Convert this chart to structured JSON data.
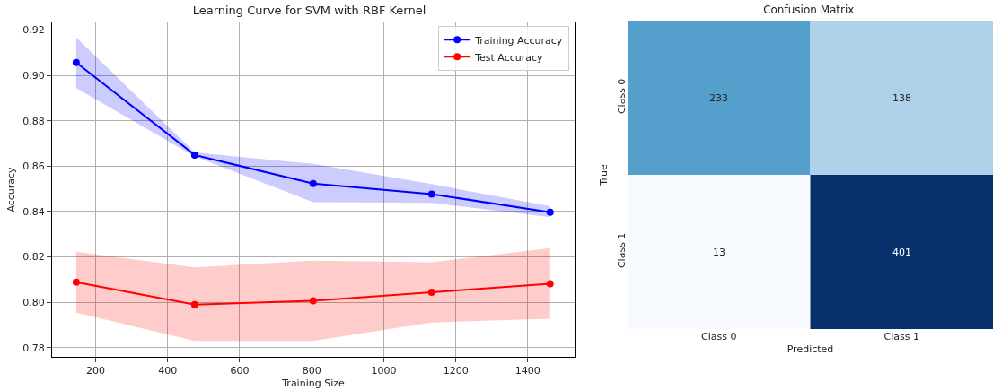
{
  "chart_data": [
    {
      "type": "line",
      "title": "Learning Curve for SVM with RBF Kernel",
      "xlabel": "Training Size",
      "ylabel": "Accuracy",
      "x": [
        146,
        475,
        804,
        1133,
        1462
      ],
      "series": [
        {
          "name": "Training Accuracy",
          "color": "#0000ff",
          "values": [
            0.9056,
            0.8649,
            0.8523,
            0.8477,
            0.8397
          ],
          "lower": [
            0.8944,
            0.8643,
            0.8441,
            0.8438,
            0.8375
          ],
          "upper": [
            0.9167,
            0.866,
            0.861,
            0.8521,
            0.8423
          ]
        },
        {
          "name": "Test Accuracy",
          "color": "#ff0000",
          "values": [
            0.8089,
            0.799,
            0.8007,
            0.8044,
            0.8082
          ],
          "lower": [
            0.7954,
            0.783,
            0.783,
            0.7911,
            0.7928
          ],
          "upper": [
            0.8223,
            0.8154,
            0.8184,
            0.8177,
            0.8239
          ]
        }
      ],
      "xlim": [
        79,
        1530
      ],
      "xticks": [
        200,
        400,
        600,
        800,
        1000,
        1200,
        1400
      ],
      "ylim": [
        0.776,
        0.9233
      ],
      "yticks": [
        0.78,
        {
          "value": 0.8,
          "label": "0.80"
        },
        0.82,
        0.84,
        0.86,
        0.88,
        {
          "value": 0.9,
          "label": "0.90"
        },
        0.92
      ],
      "grid": true,
      "legend": "top right",
      "marker": "circle",
      "line_style": "solid"
    },
    {
      "type": "heatmap",
      "title": "Confusion Matrix",
      "xlabel": "Predicted",
      "ylabel": "True",
      "categories": [
        "Class 0",
        "Class 1"
      ],
      "y_categories": [
        "Class 0",
        "Class 1"
      ],
      "cells": [
        [
          233,
          138
        ],
        [
          13,
          401
        ]
      ],
      "data_labels": true
    }
  ]
}
